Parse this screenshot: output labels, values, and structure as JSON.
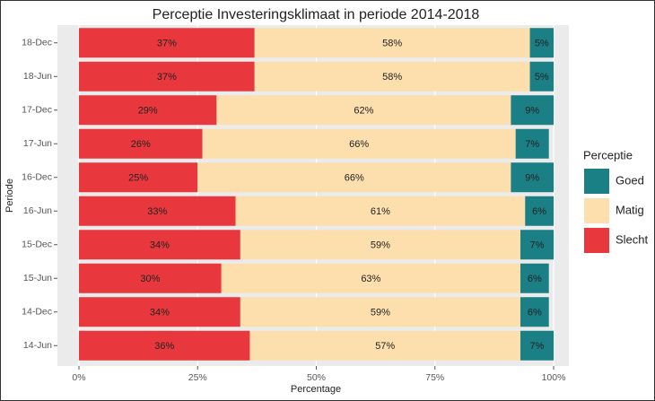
{
  "chart_data": {
    "type": "stacked_barh",
    "title": "Perceptie Investeringsklimaat in periode 2014-2018",
    "x_label": "Percentage",
    "y_label": "Periode",
    "legend_title": "Perceptie",
    "legend": "right",
    "grid": true,
    "categories": [
      "18-Dec",
      "18-Jun",
      "17-Dec",
      "17-Jun",
      "16-Dec",
      "16-Jun",
      "15-Dec",
      "15-Jun",
      "14-Dec",
      "14-Jun"
    ],
    "series": [
      {
        "name": "Goed",
        "color": "#1b7f86",
        "values": [
          5,
          5,
          9,
          7,
          9,
          6,
          7,
          6,
          6,
          7
        ],
        "value_labels": [
          "5%",
          "5%",
          "9%",
          "7%",
          "9%",
          "6%",
          "7%",
          "6%",
          "6%",
          "7%"
        ]
      },
      {
        "name": "Matig",
        "color": "#fddfae",
        "values": [
          58,
          58,
          62,
          66,
          66,
          61,
          59,
          63,
          59,
          57
        ],
        "value_labels": [
          "58%",
          "58%",
          "62%",
          "66%",
          "66%",
          "61%",
          "59%",
          "63%",
          "59%",
          "57%"
        ]
      },
      {
        "name": "Slecht",
        "color": "#e8383d",
        "values": [
          37,
          37,
          29,
          26,
          25,
          33,
          34,
          30,
          34,
          36
        ],
        "value_labels": [
          "37%",
          "37%",
          "29%",
          "26%",
          "25%",
          "33%",
          "34%",
          "30%",
          "34%",
          "36%"
        ]
      }
    ],
    "xlim": [
      0,
      100
    ],
    "xticks": [
      {
        "value": 0,
        "label": "0%"
      },
      {
        "value": 25,
        "label": "25%"
      },
      {
        "value": 50,
        "label": "50%"
      },
      {
        "value": 75,
        "label": "75%"
      },
      {
        "value": 100,
        "label": "100%"
      }
    ]
  }
}
